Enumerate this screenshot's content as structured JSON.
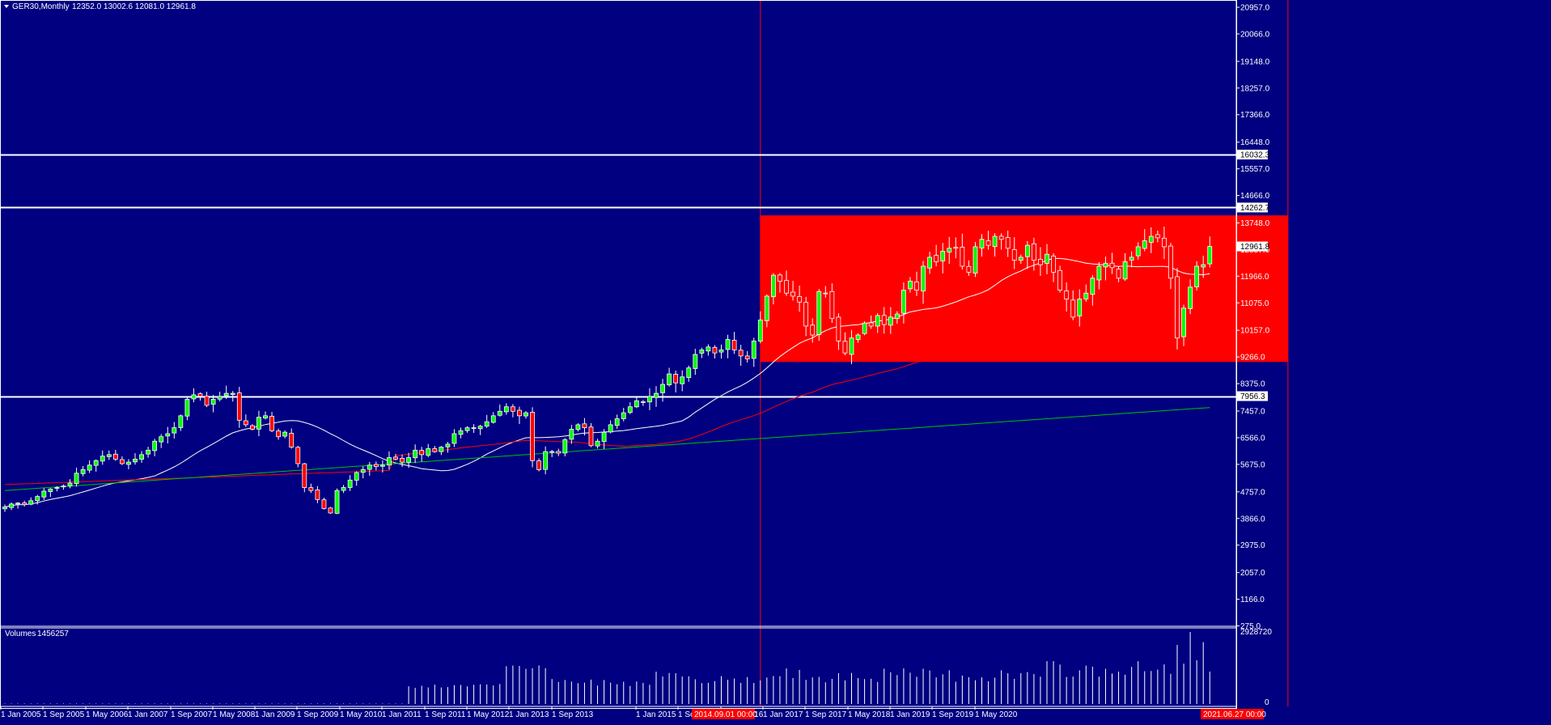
{
  "header": {
    "symbol": "GER30,Monthly",
    "ohlc": "12352.0 13002.6 12081.0 12961.8"
  },
  "volume_header": {
    "label": "Volumes",
    "value": "1456257"
  },
  "colors": {
    "background": "#000080",
    "bull": "#00ff00",
    "bear": "#ff0000",
    "ma_fast": "#ffffff",
    "ma_mid": "#ff0000",
    "ma_slow": "#00c000",
    "rect_fill": "#ff0000",
    "hline": "#ffffff",
    "vline": "#ff0000",
    "volume": "#ffffff"
  },
  "chart_data": {
    "type": "candlestick",
    "y_ticks": [
      "20957.0",
      "20066.0",
      "19148.0",
      "18257.0",
      "17366.0",
      "16448.0",
      "15557.0",
      "14666.0",
      "13748.0",
      "12857.0",
      "11966.0",
      "11075.0",
      "10157.0",
      "9266.0",
      "8375.0",
      "7457.0",
      "6566.0",
      "5675.0",
      "4757.0",
      "3866.0",
      "2975.0",
      "2057.0",
      "1166.0",
      "275.0"
    ],
    "ylim": [
      275,
      20957
    ],
    "x_ticks": [
      "1 Jan 2005",
      "1 Sep 2005",
      "1 May 2006",
      "1 Jan 2007",
      "1 Sep 2007",
      "1 May 2008",
      "1 Jan 2009",
      "1 Sep 2009",
      "1 May 2010",
      "1 Jan 2011",
      "1 Sep 2011",
      "1 May 2012",
      "1 Jan 2013",
      "1 Sep 2013",
      "1 Jan 2015",
      "1 Sep 2015",
      "1 May 2016",
      "1 Jan 2017",
      "1 Sep 2017",
      "1 May 2018",
      "1 Jan 2019",
      "1 Sep 2019",
      "1 May 2020"
    ],
    "x_ticks_highlight": [
      "2014.09.01 00:00",
      "2021.06.27 00:00"
    ],
    "price_tags": [
      {
        "value": 16032.3,
        "label": "16032.3",
        "style": "line"
      },
      {
        "value": 14262.7,
        "label": "14262.7",
        "style": "line"
      },
      {
        "value": 12961.8,
        "label": "12961.8",
        "style": "current"
      },
      {
        "value": 7956.3,
        "label": "7956.3",
        "style": "line"
      }
    ],
    "rectangle": {
      "from": "2014-09",
      "to": "2021-06",
      "low": 9100,
      "high": 14000
    },
    "vertical_lines": [
      "2014-09",
      "2021-06"
    ],
    "volume_ticks": [
      "2928720",
      "0"
    ],
    "volume_max": 2928720,
    "start": "2005-01",
    "closes": [
      4250,
      4350,
      4380,
      4330,
      4460,
      4600,
      4780,
      4850,
      4900,
      4950,
      5050,
      5380,
      5500,
      5650,
      5800,
      5950,
      6000,
      5850,
      5700,
      5750,
      5850,
      6000,
      6150,
      6450,
      6600,
      6700,
      6900,
      7300,
      7850,
      8000,
      7950,
      7650,
      7850,
      7950,
      8050,
      8050,
      7150,
      7000,
      6850,
      7250,
      7300,
      6800,
      6600,
      6750,
      6250,
      5700,
      4900,
      4800,
      4500,
      4200,
      4050,
      4800,
      4900,
      5150,
      5400,
      5500,
      5650,
      5600,
      5650,
      5900,
      5850,
      5750,
      5900,
      6150,
      6000,
      6200,
      6100,
      6250,
      6350,
      6700,
      6800,
      6900,
      6900,
      6950,
      7100,
      7300,
      7450,
      7600,
      7450,
      7300,
      7400,
      5800,
      5500,
      6100,
      6100,
      6050,
      6500,
      6850,
      7000,
      6900,
      6300,
      6450,
      6750,
      7000,
      7200,
      7400,
      7600,
      7800,
      7750,
      7950,
      8050,
      8350,
      8700,
      8400,
      8600,
      8900,
      9350,
      9500,
      9600,
      9400,
      9500,
      9850,
      9500,
      9300,
      9200,
      9800,
      10500,
      11300,
      12000,
      11800,
      11400,
      11300,
      11100,
      10300,
      10000,
      11450,
      11400,
      10550,
      9800,
      9400,
      9900,
      10000,
      10400,
      10300,
      10650,
      10350,
      10600,
      10700,
      11500,
      11800,
      11500,
      12300,
      12600,
      12450,
      12800,
      12900,
      12900,
      12300,
      12100,
      12950,
      13200,
      13000,
      13300,
      13200,
      12900,
      12500,
      12600,
      13000,
      12500,
      12350,
      12700,
      12100,
      11500,
      11200,
      10600,
      11200,
      11400,
      11900,
      12300,
      12400,
      12250,
      11900,
      12450,
      12600,
      12950,
      13150,
      13300,
      13250,
      12950,
      11900,
      9900,
      10900,
      11600,
      12300,
      12350,
      12961
    ]
  }
}
